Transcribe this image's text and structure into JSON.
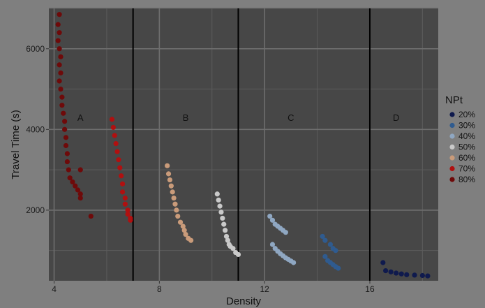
{
  "chart_data": {
    "type": "scatter",
    "title": "",
    "xlabel": "Density",
    "ylabel": "Travel Time (s)",
    "xlim": [
      3.8,
      18.6
    ],
    "ylim": [
      250,
      7000
    ],
    "x_ticks": [
      4,
      8,
      12,
      16
    ],
    "y_ticks": [
      2000,
      4000,
      6000
    ],
    "grid": true,
    "vlines": [
      7,
      11,
      16
    ],
    "region_labels": [
      {
        "label": "A",
        "x": 5.0,
        "y": 4300
      },
      {
        "label": "B",
        "x": 9.0,
        "y": 4300
      },
      {
        "label": "C",
        "x": 13.0,
        "y": 4300
      },
      {
        "label": "D",
        "x": 17.0,
        "y": 4300
      }
    ],
    "legend_title": "NPt",
    "legend_position": "right",
    "series": [
      {
        "name": "20%",
        "color": "#0f1a4d",
        "points": [
          [
            16.5,
            700
          ],
          [
            16.6,
            500
          ],
          [
            16.8,
            470
          ],
          [
            17.0,
            440
          ],
          [
            17.2,
            420
          ],
          [
            17.4,
            400
          ],
          [
            17.7,
            390
          ],
          [
            18.0,
            380
          ],
          [
            18.2,
            370
          ]
        ]
      },
      {
        "name": "30%",
        "color": "#2f5b8f",
        "points": [
          [
            14.2,
            1350
          ],
          [
            14.3,
            1250
          ],
          [
            14.5,
            1150
          ],
          [
            14.6,
            1050
          ],
          [
            14.7,
            1000
          ],
          [
            14.3,
            850
          ],
          [
            14.4,
            750
          ],
          [
            14.5,
            700
          ],
          [
            14.6,
            650
          ],
          [
            14.7,
            600
          ],
          [
            14.8,
            560
          ]
        ]
      },
      {
        "name": "40%",
        "color": "#8fa7c2",
        "points": [
          [
            12.2,
            1850
          ],
          [
            12.3,
            1750
          ],
          [
            12.4,
            1650
          ],
          [
            12.5,
            1600
          ],
          [
            12.6,
            1550
          ],
          [
            12.7,
            1500
          ],
          [
            12.8,
            1450
          ],
          [
            12.3,
            1150
          ],
          [
            12.4,
            1050
          ],
          [
            12.5,
            980
          ],
          [
            12.6,
            920
          ],
          [
            12.7,
            870
          ],
          [
            12.8,
            820
          ],
          [
            12.9,
            780
          ],
          [
            13.0,
            740
          ],
          [
            13.1,
            700
          ]
        ]
      },
      {
        "name": "50%",
        "color": "#c9c9c9",
        "points": [
          [
            10.2,
            2400
          ],
          [
            10.25,
            2250
          ],
          [
            10.3,
            2100
          ],
          [
            10.35,
            1950
          ],
          [
            10.4,
            1800
          ],
          [
            10.45,
            1650
          ],
          [
            10.5,
            1500
          ],
          [
            10.55,
            1350
          ],
          [
            10.6,
            1250
          ],
          [
            10.65,
            1150
          ],
          [
            10.7,
            1100
          ],
          [
            10.8,
            1050
          ],
          [
            10.9,
            950
          ],
          [
            11.0,
            900
          ]
        ]
      },
      {
        "name": "60%",
        "color": "#c99b7a",
        "points": [
          [
            8.3,
            3100
          ],
          [
            8.35,
            2900
          ],
          [
            8.4,
            2750
          ],
          [
            8.45,
            2600
          ],
          [
            8.5,
            2450
          ],
          [
            8.55,
            2300
          ],
          [
            8.6,
            2150
          ],
          [
            8.65,
            2000
          ],
          [
            8.7,
            1850
          ],
          [
            8.8,
            1700
          ],
          [
            8.9,
            1600
          ],
          [
            8.95,
            1500
          ],
          [
            9.0,
            1400
          ],
          [
            9.1,
            1300
          ],
          [
            9.2,
            1250
          ]
        ]
      },
      {
        "name": "70%",
        "color": "#b01010",
        "points": [
          [
            6.2,
            4250
          ],
          [
            6.25,
            4050
          ],
          [
            6.3,
            3850
          ],
          [
            6.35,
            3650
          ],
          [
            6.4,
            3450
          ],
          [
            6.45,
            3250
          ],
          [
            6.5,
            3050
          ],
          [
            6.55,
            2850
          ],
          [
            6.6,
            2650
          ],
          [
            6.6,
            2450
          ],
          [
            6.7,
            2300
          ],
          [
            6.7,
            2150
          ],
          [
            6.8,
            2000
          ],
          [
            6.8,
            1900
          ],
          [
            6.9,
            1800
          ],
          [
            6.9,
            1750
          ]
        ]
      },
      {
        "name": "80%",
        "color": "#6e0a0a",
        "points": [
          [
            4.2,
            6850
          ],
          [
            4.15,
            6600
          ],
          [
            4.2,
            6400
          ],
          [
            4.15,
            6200
          ],
          [
            4.2,
            6000
          ],
          [
            4.25,
            5800
          ],
          [
            4.2,
            5600
          ],
          [
            4.25,
            5400
          ],
          [
            4.2,
            5200
          ],
          [
            4.25,
            5000
          ],
          [
            4.3,
            4800
          ],
          [
            4.3,
            4600
          ],
          [
            4.35,
            4400
          ],
          [
            4.4,
            4200
          ],
          [
            4.4,
            4000
          ],
          [
            4.45,
            3800
          ],
          [
            4.45,
            3600
          ],
          [
            4.5,
            3400
          ],
          [
            4.5,
            3200
          ],
          [
            4.55,
            3000
          ],
          [
            4.6,
            2800
          ],
          [
            4.7,
            2700
          ],
          [
            4.8,
            2600
          ],
          [
            4.9,
            2500
          ],
          [
            5.0,
            2400
          ],
          [
            5.0,
            2300
          ],
          [
            5.0,
            3000
          ],
          [
            5.4,
            1850
          ]
        ]
      }
    ]
  }
}
